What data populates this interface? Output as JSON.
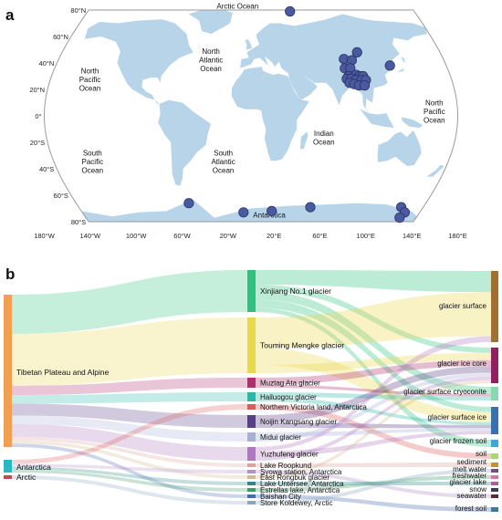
{
  "panel_a": {
    "label": "a",
    "lat_ticks": [
      "80°N",
      "60°N",
      "40°N",
      "20°N",
      "0°",
      "20°S",
      "40°S",
      "60°S",
      "80°S"
    ],
    "lon_ticks": [
      "180°W",
      "140°W",
      "100°W",
      "60°W",
      "20°W",
      "20°E",
      "60°E",
      "100°E",
      "140°E",
      "180°E"
    ],
    "oceans": [
      "Arctic Ocean",
      "North Atlantic Ocean",
      "North Pacific Ocean",
      "North Pacific Ocean",
      "Indian Ocean",
      "South Pacific Ocean",
      "South Atlantic Ocean",
      "Antarctica"
    ],
    "ocean_lines": [
      [
        "Arctic Ocean"
      ],
      [
        "North",
        "Atlantic",
        "Ocean"
      ],
      [
        "North",
        "Pacific",
        "Ocean"
      ],
      [
        "North",
        "Pacific",
        "Ocean"
      ],
      [
        "Indian",
        "Ocean"
      ],
      [
        "South",
        "Pacific",
        "Ocean"
      ],
      [
        "South",
        "Atlantic",
        "Ocean"
      ],
      [
        "Antarctica"
      ]
    ],
    "colors": {
      "land": "#b8d4e8",
      "sample": "#4a5a9e",
      "sample_stroke": "#2a326a",
      "frame": "#9a9a9a"
    }
  },
  "panel_b": {
    "label": "b",
    "sources": [
      "Tibetan Plateau and Alpine",
      "Antarctica",
      "Arctic"
    ],
    "sites": [
      "Xinjiang No.1 glacier",
      "Touming Mengke glacier",
      "Muztag Ata glacier",
      "Hailuogou glacier",
      "Northern Victoria land, Antarctica",
      "Noijin Kangsang glacier",
      "Midui glacier",
      "Yuzhufeng glacier",
      "Lake Roopkund",
      "Syowa station, Antarctica",
      "East Rongbuk glacier",
      "Lake Untersee, Antarctica",
      "Estrellas lake, Antarctica",
      "Baishan City",
      "Store Koldewey, Arctic"
    ],
    "habitats": [
      "glacier surface",
      "glacier ice core",
      "glacier surface cryoconite",
      "glacier surface ice",
      "glacier frozen soil",
      "soil",
      "sediment",
      "melt water",
      "freshwater",
      "glacier lake",
      "snow",
      "seawater",
      "forest soil"
    ],
    "source_colors": [
      "#f0a050",
      "#2ab8c0",
      "#c04a5a"
    ],
    "site_colors": [
      "#2ec27e",
      "#e8d84a",
      "#b0306e",
      "#28b8a8",
      "#e05a5a",
      "#5a3e8a",
      "#a8b0d8",
      "#b078c0",
      "#e0a0a0",
      "#b090c8",
      "#d8b890",
      "#2a8a8a",
      "#3a9a6a",
      "#4a6ab0",
      "#88a8c0"
    ],
    "habitat_colors": [
      "#a07030",
      "#902060",
      "#8ad8b0",
      "#3a70b0",
      "#3aa8d8",
      "#a8d870",
      "#c89030",
      "#705080",
      "#e070a0",
      "#b06090",
      "#3a3a5a",
      "#5a2a3a",
      "#3a7a9a"
    ]
  }
}
